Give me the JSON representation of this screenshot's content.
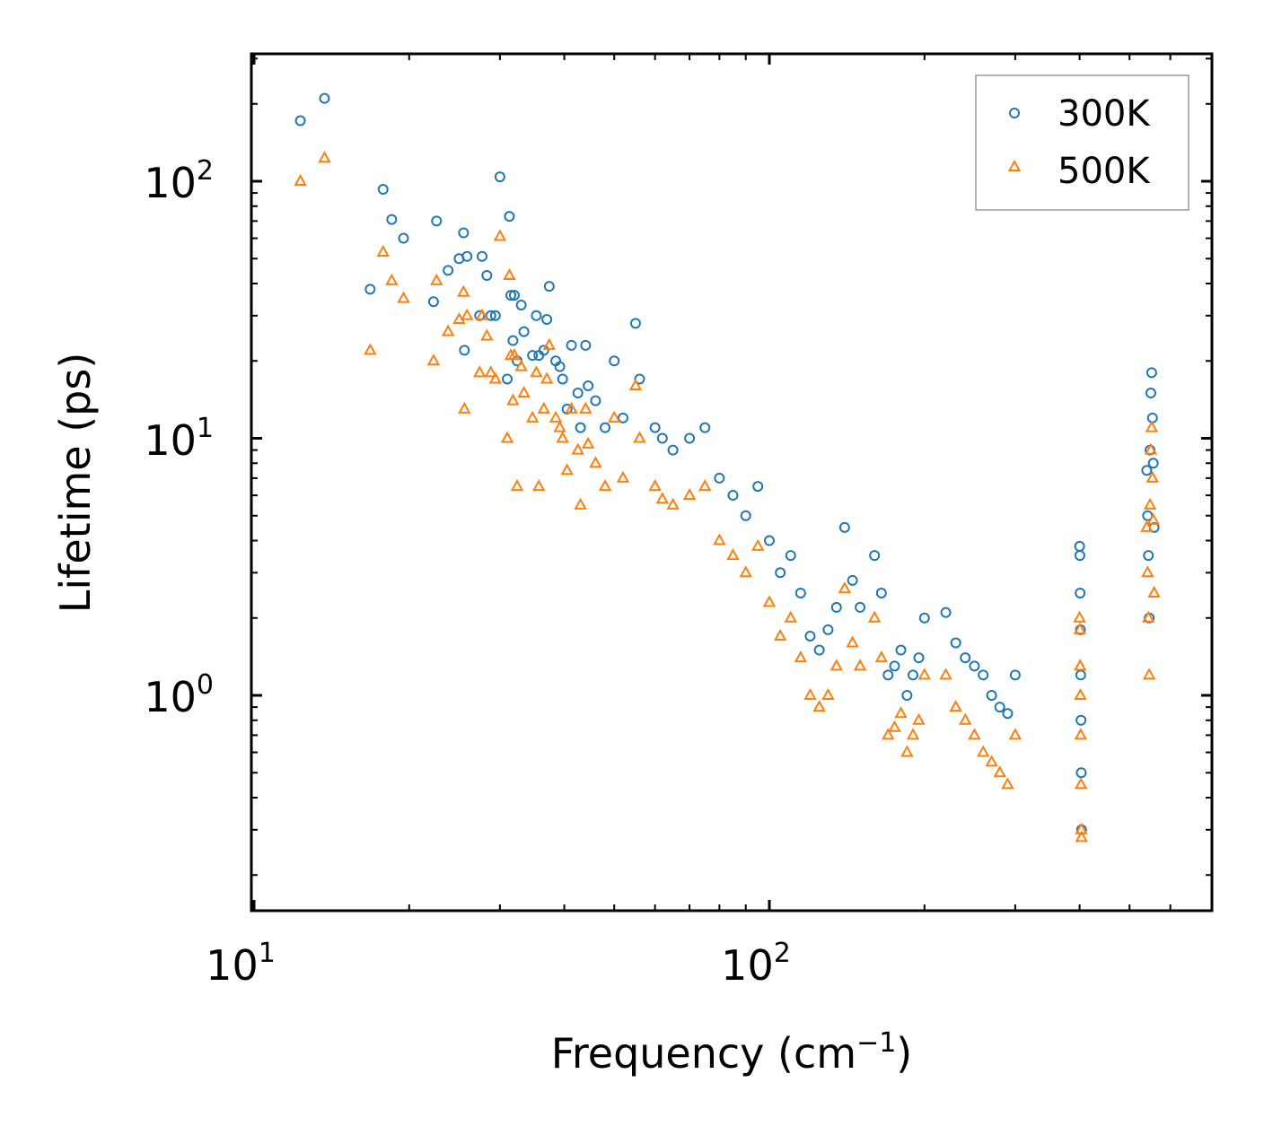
{
  "chart_data": {
    "type": "scatter",
    "title": "",
    "xlabel": "Frequency (cm",
    "xlabel_sup": "−1",
    "xlabel_close": ")",
    "ylabel": "Lifetime (ps)",
    "xscale": "log",
    "yscale": "log",
    "xlim": [
      10,
      600
    ],
    "ylim": [
      0.17,
      300
    ],
    "x_ticks": [
      {
        "base": "10",
        "exp": "1",
        "value": 10
      },
      {
        "base": "10",
        "exp": "2",
        "value": 100
      }
    ],
    "y_ticks": [
      {
        "base": "10",
        "exp": "0",
        "value": 1
      },
      {
        "base": "10",
        "exp": "1",
        "value": 10
      },
      {
        "base": "10",
        "exp": "2",
        "value": 100
      }
    ],
    "legend_position": "top-right",
    "series": [
      {
        "name": "300K",
        "color": "#1f77b4",
        "marker": "circle",
        "points": [
          [
            12.3,
            172
          ],
          [
            13.7,
            210
          ],
          [
            16.8,
            38
          ],
          [
            17.8,
            93
          ],
          [
            18.5,
            71
          ],
          [
            19.5,
            60
          ],
          [
            22.3,
            34
          ],
          [
            22.6,
            70
          ],
          [
            23.8,
            45
          ],
          [
            25.0,
            50
          ],
          [
            25.5,
            63
          ],
          [
            25.6,
            22
          ],
          [
            25.9,
            51
          ],
          [
            27.4,
            30
          ],
          [
            27.7,
            51
          ],
          [
            28.3,
            43
          ],
          [
            28.8,
            30
          ],
          [
            29.4,
            30
          ],
          [
            30.0,
            104
          ],
          [
            31.0,
            17
          ],
          [
            31.3,
            73
          ],
          [
            31.5,
            36
          ],
          [
            31.8,
            24
          ],
          [
            32.0,
            36
          ],
          [
            32.4,
            20
          ],
          [
            33.0,
            33
          ],
          [
            33.4,
            26
          ],
          [
            34.7,
            21
          ],
          [
            35.3,
            30
          ],
          [
            35.7,
            21
          ],
          [
            36.5,
            22
          ],
          [
            37.0,
            29
          ],
          [
            37.4,
            39
          ],
          [
            38.5,
            20
          ],
          [
            39.2,
            19
          ],
          [
            39.7,
            17
          ],
          [
            40.5,
            13
          ],
          [
            41.3,
            23
          ],
          [
            42.5,
            15
          ],
          [
            43.0,
            11
          ],
          [
            44.0,
            23
          ],
          [
            44.5,
            16
          ],
          [
            46.0,
            14
          ],
          [
            48.0,
            11
          ],
          [
            50.0,
            20
          ],
          [
            52.0,
            12
          ],
          [
            55.0,
            28
          ],
          [
            56.0,
            17
          ],
          [
            60.0,
            11
          ],
          [
            62.0,
            10
          ],
          [
            65.0,
            9
          ],
          [
            70.0,
            10
          ],
          [
            75.0,
            11
          ],
          [
            80.0,
            7
          ],
          [
            85.0,
            6
          ],
          [
            90.0,
            5
          ],
          [
            95.0,
            6.5
          ],
          [
            100.0,
            4
          ],
          [
            105.0,
            3
          ],
          [
            110.0,
            3.5
          ],
          [
            115.0,
            2.5
          ],
          [
            120.0,
            1.7
          ],
          [
            125.0,
            1.5
          ],
          [
            130.0,
            1.8
          ],
          [
            135.0,
            2.2
          ],
          [
            140.0,
            4.5
          ],
          [
            145.0,
            2.8
          ],
          [
            150.0,
            2.2
          ],
          [
            160.0,
            3.5
          ],
          [
            165.0,
            2.5
          ],
          [
            170.0,
            1.2
          ],
          [
            175.0,
            1.3
          ],
          [
            180.0,
            1.5
          ],
          [
            185.0,
            1.0
          ],
          [
            190.0,
            1.2
          ],
          [
            195.0,
            1.4
          ],
          [
            200.0,
            2.0
          ],
          [
            220.0,
            2.1
          ],
          [
            230.0,
            1.6
          ],
          [
            240.0,
            1.4
          ],
          [
            250.0,
            1.3
          ],
          [
            260.0,
            1.2
          ],
          [
            270.0,
            1.0
          ],
          [
            280.0,
            0.9
          ],
          [
            290.0,
            0.85
          ],
          [
            300.0,
            1.2
          ],
          [
            400.0,
            3.8
          ],
          [
            400.5,
            3.5
          ],
          [
            401.0,
            2.5
          ],
          [
            401.5,
            1.8
          ],
          [
            402.0,
            1.2
          ],
          [
            402.5,
            0.8
          ],
          [
            403.0,
            0.5
          ],
          [
            403.5,
            0.3
          ],
          [
            540.0,
            7.5
          ],
          [
            542.0,
            5.0
          ],
          [
            544.0,
            3.5
          ],
          [
            546.0,
            2.0
          ],
          [
            548.0,
            9.0
          ],
          [
            550.0,
            15.0
          ],
          [
            552.0,
            18.0
          ],
          [
            554.0,
            12.0
          ],
          [
            556.0,
            8.0
          ],
          [
            558.0,
            4.5
          ]
        ]
      },
      {
        "name": "500K",
        "color": "#ff7f0e",
        "marker": "triangle",
        "points": [
          [
            12.3,
            100
          ],
          [
            13.7,
            123
          ],
          [
            16.8,
            22
          ],
          [
            17.8,
            53
          ],
          [
            18.5,
            41
          ],
          [
            19.5,
            35
          ],
          [
            22.3,
            20
          ],
          [
            22.6,
            41
          ],
          [
            23.8,
            26
          ],
          [
            25.0,
            29
          ],
          [
            25.5,
            37
          ],
          [
            25.6,
            13
          ],
          [
            25.9,
            30
          ],
          [
            27.4,
            18
          ],
          [
            27.7,
            30
          ],
          [
            28.3,
            25
          ],
          [
            28.8,
            18
          ],
          [
            29.4,
            17
          ],
          [
            30.0,
            61
          ],
          [
            31.0,
            10
          ],
          [
            31.3,
            43
          ],
          [
            31.5,
            21
          ],
          [
            31.8,
            14
          ],
          [
            32.0,
            21
          ],
          [
            32.4,
            6.5
          ],
          [
            33.0,
            19
          ],
          [
            33.4,
            15
          ],
          [
            34.7,
            12
          ],
          [
            35.3,
            18
          ],
          [
            35.7,
            6.5
          ],
          [
            36.5,
            13
          ],
          [
            37.0,
            17
          ],
          [
            37.4,
            23
          ],
          [
            38.5,
            12
          ],
          [
            39.2,
            11
          ],
          [
            39.7,
            10
          ],
          [
            40.5,
            7.5
          ],
          [
            41.3,
            13
          ],
          [
            42.5,
            9
          ],
          [
            43.0,
            5.5
          ],
          [
            44.0,
            13
          ],
          [
            44.5,
            9.5
          ],
          [
            46.0,
            8
          ],
          [
            48.0,
            6.5
          ],
          [
            50.0,
            12
          ],
          [
            52.0,
            7
          ],
          [
            55.0,
            16
          ],
          [
            56.0,
            10
          ],
          [
            60.0,
            6.5
          ],
          [
            62.0,
            5.8
          ],
          [
            65.0,
            5.5
          ],
          [
            70.0,
            6
          ],
          [
            75.0,
            6.5
          ],
          [
            80.0,
            4
          ],
          [
            85.0,
            3.5
          ],
          [
            90.0,
            3
          ],
          [
            95.0,
            3.8
          ],
          [
            100.0,
            2.3
          ],
          [
            105.0,
            1.7
          ],
          [
            110.0,
            2
          ],
          [
            115.0,
            1.4
          ],
          [
            120.0,
            1.0
          ],
          [
            125.0,
            0.9
          ],
          [
            130.0,
            1.0
          ],
          [
            135.0,
            1.3
          ],
          [
            140.0,
            2.6
          ],
          [
            145.0,
            1.6
          ],
          [
            150.0,
            1.3
          ],
          [
            160.0,
            2
          ],
          [
            165.0,
            1.4
          ],
          [
            170.0,
            0.7
          ],
          [
            175.0,
            0.75
          ],
          [
            180.0,
            0.85
          ],
          [
            185.0,
            0.6
          ],
          [
            190.0,
            0.7
          ],
          [
            195.0,
            0.8
          ],
          [
            200.0,
            1.2
          ],
          [
            220.0,
            1.2
          ],
          [
            230.0,
            0.9
          ],
          [
            240.0,
            0.8
          ],
          [
            250.0,
            0.7
          ],
          [
            260.0,
            0.6
          ],
          [
            270.0,
            0.55
          ],
          [
            280.0,
            0.5
          ],
          [
            290.0,
            0.45
          ],
          [
            300.0,
            0.7
          ],
          [
            400.0,
            2.0
          ],
          [
            400.5,
            1.8
          ],
          [
            401.0,
            1.3
          ],
          [
            401.5,
            1.0
          ],
          [
            402.0,
            0.7
          ],
          [
            402.5,
            0.45
          ],
          [
            403.0,
            0.3
          ],
          [
            403.5,
            0.28
          ],
          [
            540.0,
            4.5
          ],
          [
            542.0,
            3.0
          ],
          [
            544.0,
            2.0
          ],
          [
            546.0,
            1.2
          ],
          [
            548.0,
            5.5
          ],
          [
            550.0,
            9.0
          ],
          [
            552.0,
            11.0
          ],
          [
            554.0,
            7.0
          ],
          [
            556.0,
            4.8
          ],
          [
            558.0,
            2.5
          ]
        ]
      }
    ]
  }
}
